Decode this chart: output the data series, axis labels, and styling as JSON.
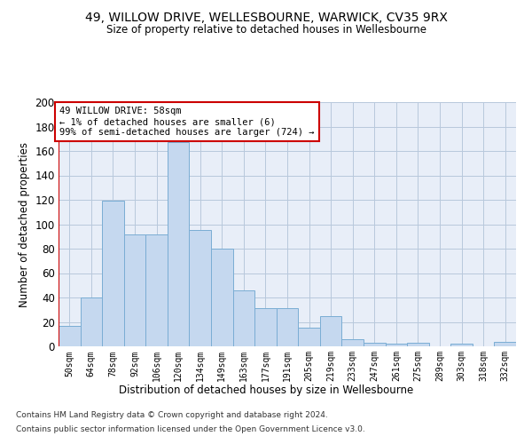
{
  "title": "49, WILLOW DRIVE, WELLESBOURNE, WARWICK, CV35 9RX",
  "subtitle": "Size of property relative to detached houses in Wellesbourne",
  "xlabel": "Distribution of detached houses by size in Wellesbourne",
  "ylabel": "Number of detached properties",
  "footer1": "Contains HM Land Registry data © Crown copyright and database right 2024.",
  "footer2": "Contains public sector information licensed under the Open Government Licence v3.0.",
  "annotation_title": "49 WILLOW DRIVE: 58sqm",
  "annotation_line2": "← 1% of detached houses are smaller (6)",
  "annotation_line3": "99% of semi-detached houses are larger (724) →",
  "bar_color": "#c5d8ef",
  "bar_edge_color": "#7aadd4",
  "highlight_color": "#cc0000",
  "bg_color": "#e8eef8",
  "grid_color": "#b8c8dc",
  "fig_bg_color": "#ffffff",
  "categories": [
    "50sqm",
    "64sqm",
    "78sqm",
    "92sqm",
    "106sqm",
    "120sqm",
    "134sqm",
    "149sqm",
    "163sqm",
    "177sqm",
    "191sqm",
    "205sqm",
    "219sqm",
    "233sqm",
    "247sqm",
    "261sqm",
    "275sqm",
    "289sqm",
    "303sqm",
    "318sqm",
    "332sqm"
  ],
  "values": [
    17,
    40,
    119,
    92,
    92,
    167,
    95,
    80,
    46,
    31,
    31,
    15,
    25,
    6,
    3,
    2,
    3,
    0,
    2,
    0,
    4
  ],
  "ylim": [
    0,
    200
  ],
  "yticks": [
    0,
    20,
    40,
    60,
    80,
    100,
    120,
    140,
    160,
    180,
    200
  ]
}
